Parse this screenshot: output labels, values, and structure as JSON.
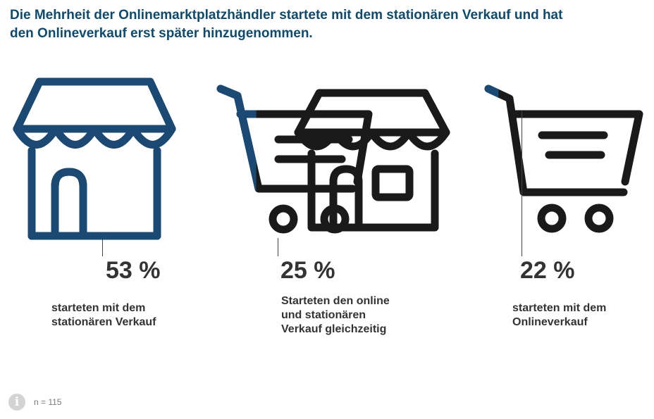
{
  "title": {
    "line1": "Die Mehrheit der Onlinemarktplatzhändler startete mit dem stationären Verkauf und hat",
    "line2": "den Onlineverkauf erst später hinzugenommen."
  },
  "colors": {
    "blue": "#1a4a73",
    "black": "#1a1a1a",
    "text": "#333333",
    "title": "#0c4a6e"
  },
  "chart_data": {
    "type": "pictogram",
    "unit": "%",
    "items": [
      {
        "icon": "shop-icon",
        "value": 53,
        "value_label": "53 %",
        "label_lines": [
          "starteten mit dem",
          "stationären Verkauf"
        ]
      },
      {
        "icon": "cart-and-shop-icon",
        "value": 25,
        "value_label": "25 %",
        "label_lines": [
          "Starteten den online",
          "und stationären",
          "Verkauf gleichzeitig"
        ]
      },
      {
        "icon": "shopping-cart-icon",
        "value": 22,
        "value_label": "22 %",
        "label_lines": [
          "starteten mit dem",
          "Onlineverkauf"
        ]
      }
    ]
  },
  "footer": {
    "info_icon": "info-icon",
    "info_glyph": "i",
    "note": "n = 115"
  }
}
